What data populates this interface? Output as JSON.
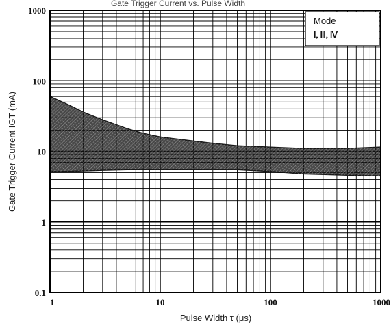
{
  "chart_data": {
    "type": "area",
    "title": "Gate Trigger Current vs. Pulse Width",
    "xlabel": "Pulse Width  τ (μs)",
    "ylabel": "Gate Trigger Current IGT (mA)",
    "x_scale": "log",
    "y_scale": "log",
    "xlim": [
      1,
      1000
    ],
    "ylim": [
      0.1,
      1000
    ],
    "x_ticks": [
      "1",
      "10",
      "100",
      "1000"
    ],
    "y_ticks": [
      "1000",
      "100",
      "10",
      "1",
      "0.1"
    ],
    "grid": true,
    "legend": {
      "placement": "top-right",
      "title": "Mode",
      "text": "Ⅰ, Ⅲ, Ⅳ"
    },
    "band": {
      "x": [
        1,
        1.5,
        2,
        3,
        5,
        7,
        10,
        20,
        30,
        50,
        100,
        200,
        500,
        1000
      ],
      "upper": [
        60,
        45,
        36,
        28,
        21,
        18,
        16,
        14,
        13,
        12,
        11.5,
        11,
        11,
        11.5
      ],
      "lower": [
        5.2,
        5.2,
        5.3,
        5.4,
        5.5,
        5.5,
        5.5,
        5.5,
        5.5,
        5.5,
        5.2,
        4.8,
        4.6,
        4.5
      ]
    },
    "colors": {
      "band": "#151515",
      "grid": "#000000"
    }
  }
}
